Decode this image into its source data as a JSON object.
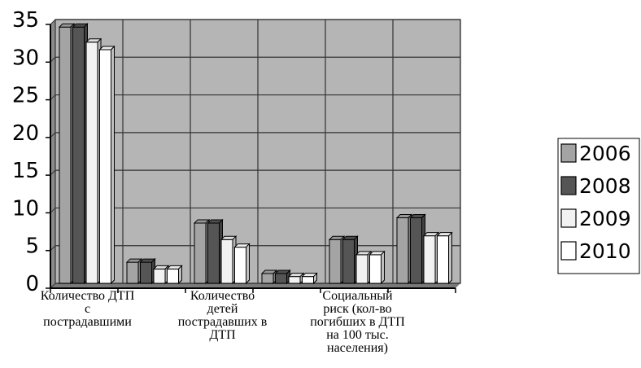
{
  "chart_data": {
    "type": "bar",
    "title": "",
    "xlabel": "",
    "ylabel": "",
    "ylim": [
      0,
      35
    ],
    "yticks": [
      0,
      5,
      10,
      15,
      20,
      25,
      30,
      35
    ],
    "grid": true,
    "legend_position": "right",
    "categories": [
      "Количество ДТП с пострадавшими",
      "",
      "Количество детей пострадавших в ДТП",
      "",
      "Социальный риск (кол-во погибших в ДТП на 100 тыс. населения)",
      ""
    ],
    "category_label_lines": [
      [
        "Количество ДТП",
        "с",
        "пострадавшими"
      ],
      [],
      [
        "Количество",
        "детей",
        "пострадавших в",
        "ДТП"
      ],
      [],
      [
        "Социальный",
        "риск (кол-во",
        "погибших в ДТП",
        "на 100 тыс.",
        "населения)"
      ],
      []
    ],
    "series": [
      {
        "name": "2006",
        "color": "#a4a4a4",
        "values": [
          34,
          2.8,
          8,
          1.3,
          5.8,
          8.7
        ]
      },
      {
        "name": "2008",
        "color": "#555555",
        "values": [
          34,
          2.8,
          8,
          1.3,
          5.8,
          8.7
        ]
      },
      {
        "name": "2009",
        "color": "#f2f2f2",
        "values": [
          32,
          1.9,
          5.8,
          0.9,
          3.8,
          6.3
        ]
      },
      {
        "name": "2010",
        "color": "#ffffff",
        "values": [
          31,
          1.9,
          4.8,
          0.9,
          3.8,
          6.3
        ]
      }
    ]
  }
}
